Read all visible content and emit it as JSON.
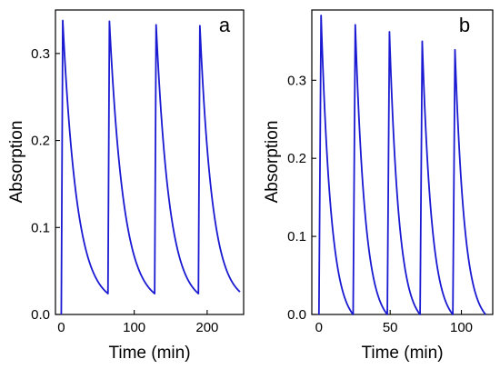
{
  "chart_data": [
    {
      "type": "line",
      "panel_label": "a",
      "xlabel": "Time (min)",
      "ylabel": "Absorption",
      "xlim": [
        -8,
        250
      ],
      "ylim": [
        0,
        0.35
      ],
      "xticks": [
        0,
        100,
        200
      ],
      "xtick_labels": [
        "0",
        "100",
        "200"
      ],
      "yticks": [
        0.0,
        0.1,
        0.2,
        0.3
      ],
      "ytick_labels": [
        "0.0",
        "0.1",
        "0.2",
        "0.3"
      ],
      "line_color": "#1a1ad2",
      "series": [
        {
          "cycles": [
            {
              "start": 0,
              "end": 64,
              "rise_end": 2,
              "peak": 0.338,
              "floor_start": 0.0,
              "final": 0.024
            },
            {
              "start": 64,
              "end": 128,
              "rise_end": 66,
              "peak": 0.337,
              "floor_start": 0.024,
              "final": 0.024
            },
            {
              "start": 128,
              "end": 188,
              "rise_end": 130,
              "peak": 0.333,
              "floor_start": 0.024,
              "final": 0.024
            },
            {
              "start": 188,
              "end": 245,
              "rise_end": 190,
              "peak": 0.332,
              "floor_start": 0.024,
              "final": 0.026
            }
          ]
        }
      ]
    },
    {
      "type": "line",
      "panel_label": "b",
      "xlabel": "Time (min)",
      "ylabel": "Absorption",
      "xlim": [
        -5,
        122
      ],
      "ylim": [
        0,
        0.39
      ],
      "xticks": [
        0,
        50,
        100
      ],
      "xtick_labels": [
        "0",
        "50",
        "100"
      ],
      "yticks": [
        0.0,
        0.1,
        0.2,
        0.3
      ],
      "ytick_labels": [
        "0.0",
        "0.1",
        "0.2",
        "0.3"
      ],
      "line_color": "#1a1ad2",
      "series": [
        {
          "cycles": [
            {
              "start": 0,
              "end": 24,
              "rise_end": 1.5,
              "peak": 0.383,
              "floor_start": 0.0,
              "final": 0.0
            },
            {
              "start": 24,
              "end": 48,
              "rise_end": 25.5,
              "peak": 0.371,
              "floor_start": 0.0,
              "final": 0.0
            },
            {
              "start": 48,
              "end": 71,
              "rise_end": 49.5,
              "peak": 0.362,
              "floor_start": 0.0,
              "final": 0.0
            },
            {
              "start": 71,
              "end": 94,
              "rise_end": 72.5,
              "peak": 0.35,
              "floor_start": 0.0,
              "final": 0.0
            },
            {
              "start": 94,
              "end": 117,
              "rise_end": 95.5,
              "peak": 0.339,
              "floor_start": 0.0,
              "final": 0.0
            }
          ]
        }
      ]
    }
  ]
}
